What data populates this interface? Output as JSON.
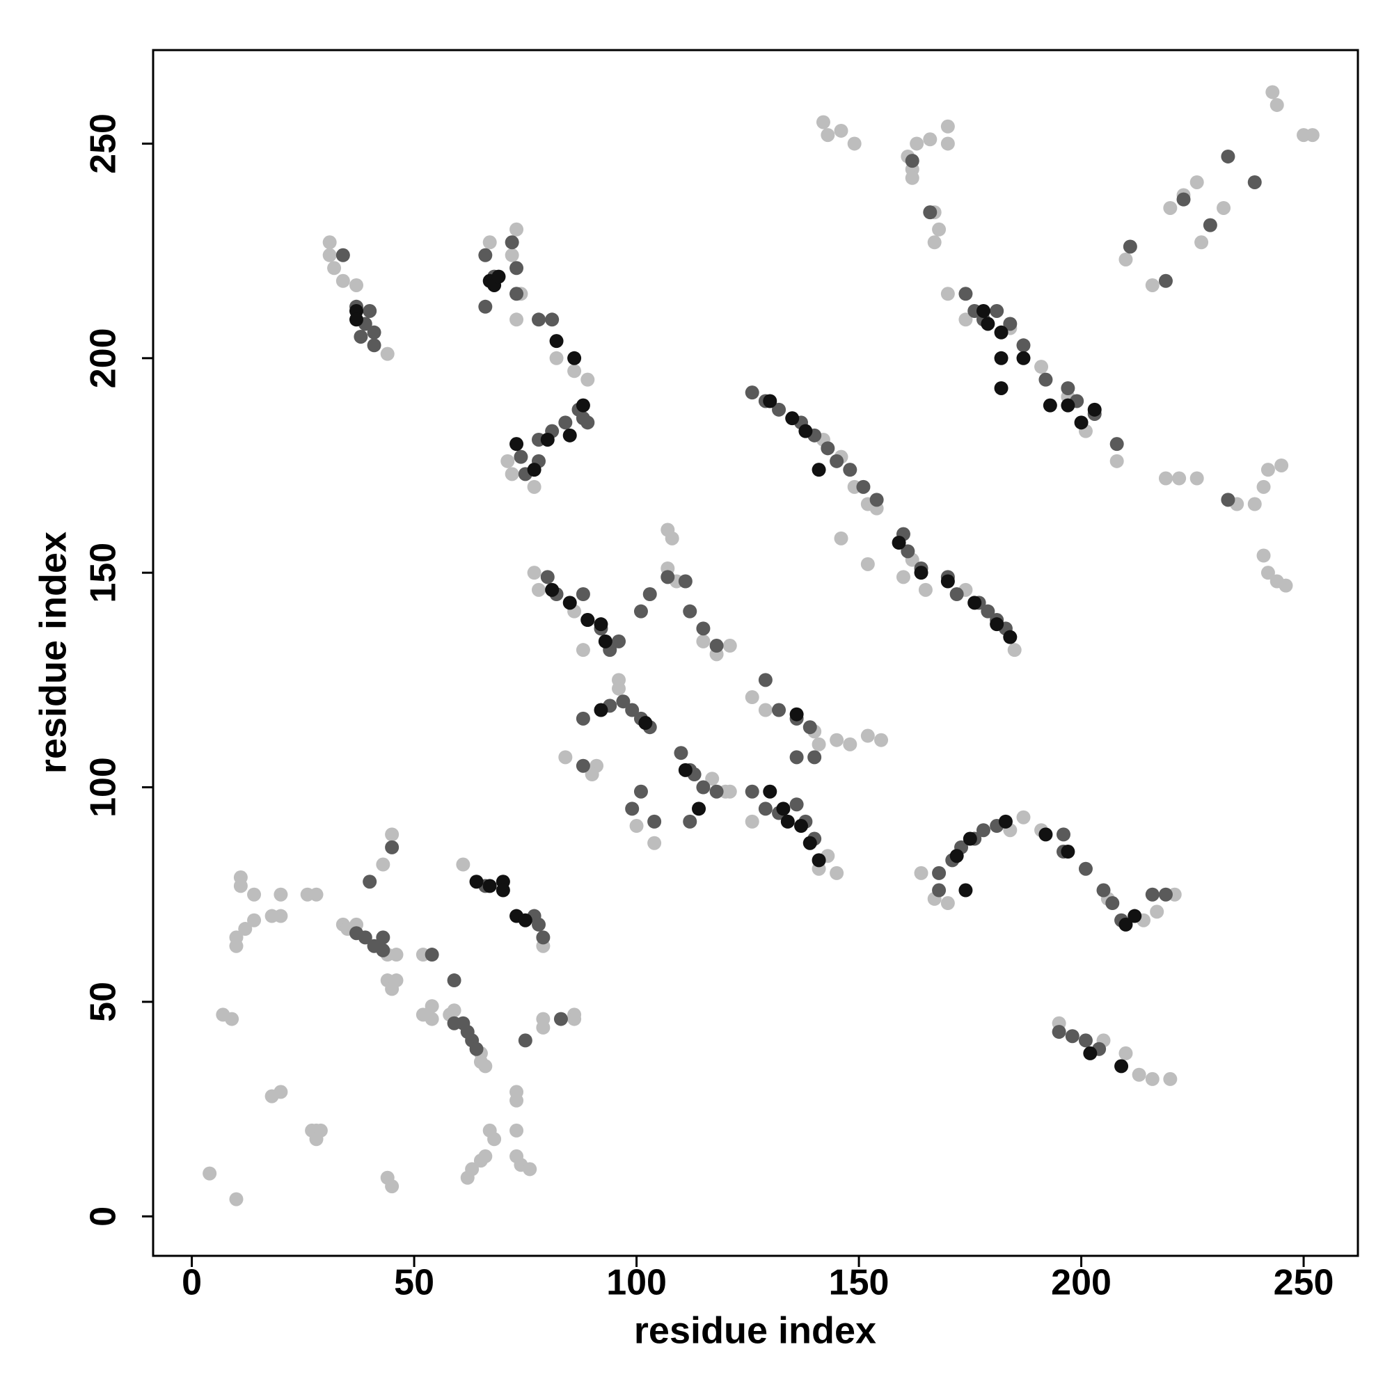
{
  "chart_data": {
    "type": "scatter",
    "xlabel": "residue index",
    "ylabel": "residue index",
    "xlim": [
      -8.7,
      262.2
    ],
    "ylim": [
      -9.2,
      271.8
    ],
    "xticks": [
      0,
      50,
      100,
      150,
      200,
      250
    ],
    "yticks": [
      0,
      50,
      100,
      150,
      200,
      250
    ],
    "series": [
      {
        "color": "#bdbdbd",
        "x": [
          4,
          10,
          7,
          9,
          11,
          11,
          14,
          10,
          10,
          12,
          14,
          18,
          20,
          20,
          26,
          28,
          18,
          20,
          27,
          28,
          29,
          28,
          34,
          35,
          37,
          45,
          43,
          44,
          46,
          44,
          46,
          45,
          44,
          45,
          52,
          52,
          54,
          54,
          58,
          59,
          61,
          62,
          63,
          65,
          66,
          67,
          68,
          65,
          66,
          65,
          73,
          73,
          73,
          73,
          74,
          76,
          79,
          79,
          86,
          86,
          79,
          31,
          31,
          32,
          34,
          37,
          44,
          73,
          67,
          72,
          74,
          73,
          71,
          72,
          77,
          86,
          89,
          82,
          77,
          78,
          88,
          86,
          107,
          108,
          107,
          109,
          115,
          118,
          121,
          96,
          96,
          91,
          84,
          100,
          104,
          90,
          117,
          120,
          121,
          126,
          141,
          145,
          143,
          126,
          129,
          140,
          141,
          145,
          148,
          152,
          155,
          142,
          146,
          149,
          152,
          154,
          146,
          152,
          160,
          162,
          165,
          174,
          185,
          170,
          174,
          184,
          197,
          201,
          208,
          191,
          164,
          167,
          170,
          184,
          187,
          191,
          206,
          214,
          217,
          221,
          195,
          205,
          210,
          213,
          216,
          220,
          142,
          143,
          146,
          149,
          161,
          162,
          163,
          166,
          167,
          168,
          167,
          170,
          170,
          162,
          210,
          216,
          220,
          223,
          226,
          227,
          232,
          243,
          244,
          250,
          252,
          219,
          222,
          226,
          233,
          235,
          239,
          241,
          242,
          245,
          241,
          242,
          244,
          246
        ],
        "y": [
          10,
          4,
          47,
          46,
          79,
          77,
          75,
          65,
          63,
          67,
          69,
          70,
          70,
          75,
          75,
          75,
          28,
          29,
          20,
          20,
          20,
          18,
          68,
          67,
          68,
          89,
          82,
          61,
          61,
          55,
          55,
          53,
          9,
          7,
          61,
          47,
          49,
          46,
          47,
          48,
          82,
          9,
          11,
          13,
          14,
          20,
          18,
          36,
          35,
          38,
          20,
          27,
          29,
          14,
          12,
          11,
          44,
          46,
          47,
          46,
          63,
          227,
          224,
          221,
          218,
          217,
          201,
          230,
          227,
          224,
          215,
          209,
          176,
          173,
          170,
          197,
          195,
          200,
          150,
          146,
          132,
          141,
          160,
          158,
          151,
          148,
          134,
          131,
          133,
          125,
          123,
          105,
          107,
          91,
          87,
          103,
          102,
          99,
          99,
          92,
          81,
          80,
          84,
          121,
          118,
          113,
          110,
          111,
          110,
          112,
          111,
          181,
          177,
          170,
          166,
          165,
          158,
          152,
          149,
          153,
          146,
          146,
          132,
          215,
          209,
          207,
          191,
          183,
          176,
          198,
          80,
          74,
          73,
          90,
          93,
          90,
          74,
          69,
          71,
          75,
          45,
          41,
          38,
          33,
          32,
          32,
          255,
          252,
          253,
          250,
          247,
          244,
          250,
          251,
          234,
          230,
          227,
          254,
          250,
          242,
          223,
          217,
          235,
          238,
          241,
          227,
          235,
          262,
          259,
          252,
          252,
          172,
          172,
          172,
          167,
          166,
          166,
          170,
          174,
          175,
          154,
          150,
          148,
          147
        ]
      },
      {
        "color": "#5a5a5a",
        "x": [
          40,
          37,
          39,
          41,
          43,
          43,
          45,
          54,
          59,
          59,
          61,
          62,
          63,
          64,
          75,
          83,
          66,
          77,
          78,
          79,
          34,
          37,
          39,
          40,
          41,
          41,
          38,
          66,
          72,
          73,
          73,
          66,
          68,
          78,
          81,
          74,
          78,
          81,
          84,
          87,
          88,
          75,
          89,
          78,
          80,
          82,
          88,
          89,
          92,
          94,
          96,
          101,
          103,
          111,
          112,
          115,
          118,
          107,
          94,
          97,
          99,
          101,
          103,
          88,
          88,
          99,
          101,
          104,
          110,
          112,
          113,
          115,
          118,
          112,
          126,
          129,
          132,
          136,
          138,
          140,
          129,
          132,
          136,
          139,
          136,
          140,
          126,
          129,
          132,
          137,
          140,
          143,
          145,
          148,
          151,
          154,
          160,
          161,
          164,
          170,
          172,
          177,
          179,
          181,
          183,
          174,
          176,
          178,
          181,
          184,
          187,
          192,
          197,
          199,
          203,
          208,
          168,
          171,
          173,
          176,
          178,
          181,
          168,
          196,
          196,
          201,
          205,
          207,
          209,
          216,
          219,
          195,
          198,
          201,
          204,
          162,
          166,
          211,
          219,
          223,
          229,
          233,
          239,
          233
        ],
        "y": [
          78,
          66,
          65,
          63,
          62,
          65,
          86,
          61,
          55,
          45,
          45,
          43,
          41,
          39,
          41,
          46,
          77,
          70,
          68,
          65,
          224,
          212,
          208,
          211,
          206,
          203,
          205,
          224,
          227,
          221,
          215,
          212,
          219,
          209,
          209,
          177,
          181,
          183,
          185,
          188,
          186,
          173,
          185,
          176,
          149,
          145,
          145,
          139,
          137,
          132,
          134,
          141,
          145,
          148,
          141,
          137,
          133,
          149,
          119,
          120,
          118,
          116,
          114,
          116,
          105,
          95,
          99,
          92,
          108,
          104,
          103,
          100,
          99,
          92,
          99,
          95,
          94,
          96,
          92,
          88,
          125,
          118,
          116,
          114,
          107,
          107,
          192,
          190,
          188,
          185,
          182,
          179,
          176,
          174,
          170,
          167,
          159,
          155,
          151,
          149,
          145,
          143,
          141,
          139,
          137,
          215,
          211,
          209,
          211,
          208,
          203,
          195,
          193,
          190,
          187,
          180,
          80,
          83,
          86,
          88,
          90,
          91,
          76,
          89,
          85,
          81,
          76,
          73,
          69,
          75,
          75,
          43,
          42,
          41,
          39,
          246,
          234,
          226,
          218,
          237,
          231,
          247,
          241,
          167
        ]
      },
      {
        "color": "#111111",
        "x": [
          37,
          37,
          67,
          68,
          69,
          82,
          86,
          64,
          67,
          70,
          70,
          73,
          75,
          73,
          77,
          80,
          85,
          88,
          81,
          85,
          89,
          92,
          93,
          92,
          102,
          111,
          114,
          130,
          133,
          134,
          137,
          139,
          141,
          136,
          130,
          135,
          138,
          141,
          159,
          164,
          170,
          176,
          181,
          184,
          178,
          179,
          182,
          182,
          182,
          187,
          193,
          197,
          200,
          203,
          172,
          175,
          174,
          183,
          192,
          197,
          210,
          212,
          202,
          209
        ],
        "y": [
          211,
          209,
          218,
          217,
          219,
          204,
          200,
          78,
          77,
          78,
          76,
          70,
          69,
          180,
          174,
          181,
          182,
          189,
          146,
          143,
          139,
          138,
          134,
          118,
          115,
          104,
          95,
          99,
          95,
          92,
          91,
          87,
          83,
          117,
          190,
          186,
          183,
          174,
          157,
          150,
          148,
          143,
          138,
          135,
          211,
          208,
          206,
          200,
          193,
          200,
          189,
          189,
          185,
          188,
          84,
          88,
          76,
          92,
          89,
          85,
          68,
          70,
          38,
          35
        ]
      }
    ]
  }
}
